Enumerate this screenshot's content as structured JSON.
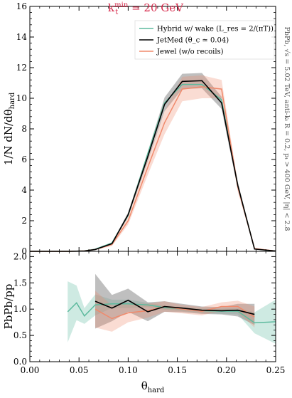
{
  "title": "k_t^min = 20 GeV",
  "side_note": "PbPb, √s = 5.02 TeV, anti-kₜ R = 0.2, pₜ > 400 GeV, |η| < 2.8",
  "colors": {
    "hybrid": "#5dba9e",
    "jetmed": "#000000",
    "jetmed_band": "#8a8a8a",
    "jewel": "#f08a6c",
    "title": "#d6284a"
  },
  "legend": {
    "hybrid": "Hybrid w/ wake (L_res = 2/(πT))",
    "jetmed": "JetMed (θ_c ≃ 0.04)",
    "jewel": "Jewel (w/o recoils)"
  },
  "chart_data": [
    {
      "type": "line",
      "panel": "top",
      "ylabel": "1/N dN/dθ_hard",
      "xlim": [
        0.0,
        0.25
      ],
      "ylim": [
        0,
        16
      ],
      "yticks": [
        "0",
        "2",
        "4",
        "6",
        "8",
        "10",
        "12",
        "14",
        "16"
      ],
      "series": [
        {
          "name": "Hybrid w/ wake (L_res = 2/(πT))",
          "x": [
            0.0,
            0.0385,
            0.0475,
            0.0555,
            0.0665,
            0.0835,
            0.1,
            0.12,
            0.137,
            0.155,
            0.175,
            0.195,
            0.2115,
            0.2285,
            0.25
          ],
          "y": [
            0.0,
            0.0,
            0.01,
            0.03,
            0.14,
            0.55,
            2.35,
            6.4,
            9.7,
            10.9,
            10.9,
            9.9,
            4.3,
            0.16,
            0.02
          ]
        },
        {
          "name": "JetMed (θ_c ≃ 0.04)",
          "x": [
            0.0,
            0.0385,
            0.0475,
            0.0555,
            0.0665,
            0.0835,
            0.1,
            0.12,
            0.137,
            0.155,
            0.175,
            0.195,
            0.2115,
            0.2285,
            0.25
          ],
          "y": [
            0.0,
            0.0,
            0.01,
            0.02,
            0.12,
            0.5,
            2.4,
            6.2,
            9.6,
            11.1,
            11.15,
            9.7,
            4.3,
            0.15,
            0.02
          ],
          "band": [
            0.0,
            0.0,
            0.0,
            0.01,
            0.03,
            0.06,
            0.15,
            0.3,
            0.45,
            0.5,
            0.5,
            0.4,
            0.25,
            0.03,
            0.01
          ]
        },
        {
          "name": "Jewel (w/o recoils)",
          "x": [
            0.0,
            0.0385,
            0.0475,
            0.0555,
            0.0665,
            0.0835,
            0.1,
            0.12,
            0.137,
            0.155,
            0.175,
            0.195,
            0.2115,
            0.2285,
            0.25
          ],
          "y": [
            0.0,
            0.0,
            0.01,
            0.03,
            0.12,
            0.45,
            2.0,
            5.5,
            8.4,
            10.6,
            10.75,
            10.6,
            4.2,
            0.18,
            0.02
          ],
          "band": [
            0.0,
            0.0,
            0.0,
            0.01,
            0.04,
            0.1,
            0.25,
            0.5,
            0.75,
            0.8,
            0.75,
            0.6,
            0.3,
            0.05,
            0.01
          ]
        }
      ]
    },
    {
      "type": "line",
      "panel": "bottom",
      "xlabel": "θ_hard",
      "ylabel": "PbPb/pp",
      "xlim": [
        0.0,
        0.25
      ],
      "ylim": [
        0.0,
        2.1
      ],
      "xticks": [
        "0.00",
        "0.05",
        "0.10",
        "0.15",
        "0.20",
        "0.25"
      ],
      "yticks": [
        "0.0",
        "0.5",
        "1.0",
        "1.5",
        "2.0"
      ],
      "series": [
        {
          "name": "Hybrid w/ wake (L_res = 2/(πT))",
          "x": [
            0.0385,
            0.0475,
            0.0555,
            0.0665,
            0.0835,
            0.1,
            0.12,
            0.137,
            0.155,
            0.175,
            0.195,
            0.2115,
            0.2285,
            0.25
          ],
          "y": [
            0.95,
            1.12,
            0.87,
            1.08,
            1.1,
            1.1,
            1.08,
            1.03,
            1.0,
            0.97,
            0.96,
            0.96,
            0.74,
            0.76
          ],
          "band": [
            0.58,
            0.33,
            0.15,
            0.2,
            0.08,
            0.08,
            0.04,
            0.04,
            0.04,
            0.04,
            0.05,
            0.06,
            0.2,
            0.42
          ]
        },
        {
          "name": "JetMed (θ_c ≃ 0.04)",
          "x": [
            0.0665,
            0.0835,
            0.1,
            0.12,
            0.137,
            0.155,
            0.175,
            0.195,
            0.2115,
            0.2285
          ],
          "y": [
            1.15,
            1.02,
            1.17,
            0.95,
            1.05,
            1.02,
            0.98,
            0.97,
            0.98,
            0.9
          ],
          "band": [
            0.52,
            0.25,
            0.22,
            0.18,
            0.1,
            0.08,
            0.07,
            0.07,
            0.12,
            0.2
          ]
        },
        {
          "name": "Jewel (w/o recoils)",
          "x": [
            0.0665,
            0.0835,
            0.1,
            0.12,
            0.137,
            0.155,
            0.175,
            0.195,
            0.2115,
            0.2285
          ],
          "y": [
            1.0,
            0.82,
            0.93,
            0.97,
            1.05,
            1.0,
            0.96,
            1.05,
            1.05,
            0.85
          ],
          "band": [
            0.35,
            0.25,
            0.18,
            0.13,
            0.1,
            0.08,
            0.08,
            0.08,
            0.11,
            0.2
          ]
        }
      ]
    }
  ]
}
